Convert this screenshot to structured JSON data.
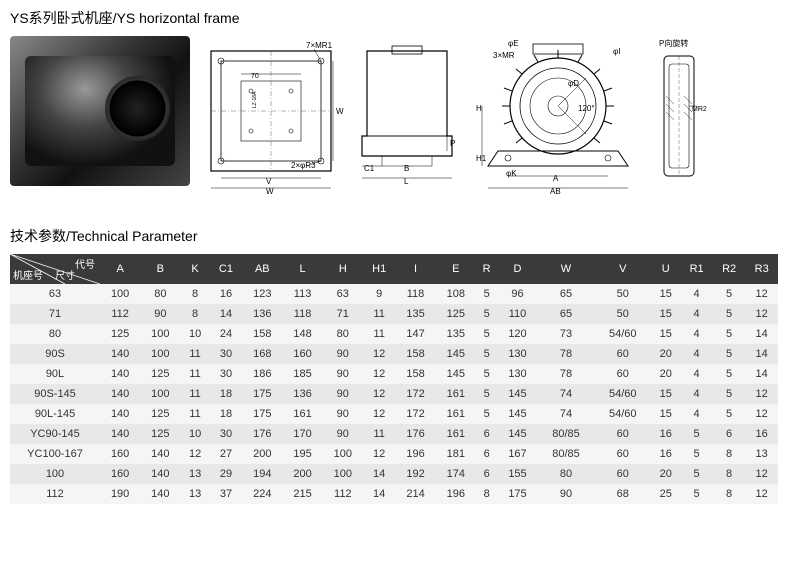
{
  "title": "YS系列卧式机座/YS horizontal frame",
  "section_title": "技术参数/Technical Parameter",
  "diagram_labels": {
    "view2": {
      "mr1": "7×MR1",
      "r3": "2×φR3",
      "v_top": "V",
      "w_side": "W",
      "v_bottom": "V",
      "w_bottom": "W",
      "dim70": "70",
      "inner": "LZ-18A"
    },
    "view3": {
      "p": "P",
      "b": "B",
      "c1": "C1",
      "l": "L"
    },
    "view4": {
      "e": "φE",
      "mr": "3×MR",
      "i": "φI",
      "d": "φD",
      "angle": "120°",
      "h": "H",
      "h1": "H1",
      "k": "φK",
      "a": "A",
      "ab": "AB"
    },
    "view5": {
      "rot": "P向旋转",
      "mr2": "MR2"
    }
  },
  "table": {
    "corner": {
      "top": "代号",
      "mid": "尺寸",
      "bottom": "机座号"
    },
    "headers": [
      "A",
      "B",
      "K",
      "C1",
      "AB",
      "L",
      "H",
      "H1",
      "I",
      "E",
      "R",
      "D",
      "W",
      "V",
      "U",
      "R1",
      "R2",
      "R3"
    ],
    "rows": [
      {
        "name": "63",
        "cells": [
          "100",
          "80",
          "8",
          "16",
          "123",
          "113",
          "63",
          "9",
          "118",
          "108",
          "5",
          "96",
          "65",
          "50",
          "15",
          "4",
          "5",
          "12"
        ]
      },
      {
        "name": "71",
        "cells": [
          "112",
          "90",
          "8",
          "14",
          "136",
          "118",
          "71",
          "11",
          "135",
          "125",
          "5",
          "110",
          "65",
          "50",
          "15",
          "4",
          "5",
          "12"
        ]
      },
      {
        "name": "80",
        "cells": [
          "125",
          "100",
          "10",
          "24",
          "158",
          "148",
          "80",
          "11",
          "147",
          "135",
          "5",
          "120",
          "73",
          "54/60",
          "15",
          "4",
          "5",
          "14"
        ]
      },
      {
        "name": "90S",
        "cells": [
          "140",
          "100",
          "11",
          "30",
          "168",
          "160",
          "90",
          "12",
          "158",
          "145",
          "5",
          "130",
          "78",
          "60",
          "20",
          "4",
          "5",
          "14"
        ]
      },
      {
        "name": "90L",
        "cells": [
          "140",
          "125",
          "11",
          "30",
          "186",
          "185",
          "90",
          "12",
          "158",
          "145",
          "5",
          "130",
          "78",
          "60",
          "20",
          "4",
          "5",
          "14"
        ]
      },
      {
        "name": "90S-145",
        "cells": [
          "140",
          "100",
          "11",
          "18",
          "175",
          "136",
          "90",
          "12",
          "172",
          "161",
          "5",
          "145",
          "74",
          "54/60",
          "15",
          "4",
          "5",
          "12"
        ]
      },
      {
        "name": "90L-145",
        "cells": [
          "140",
          "125",
          "11",
          "18",
          "175",
          "161",
          "90",
          "12",
          "172",
          "161",
          "5",
          "145",
          "74",
          "54/60",
          "15",
          "4",
          "5",
          "12"
        ]
      },
      {
        "name": "YC90-145",
        "cells": [
          "140",
          "125",
          "10",
          "30",
          "176",
          "170",
          "90",
          "11",
          "176",
          "161",
          "6",
          "145",
          "80/85",
          "60",
          "16",
          "5",
          "6",
          "16"
        ]
      },
      {
        "name": "YC100-167",
        "cells": [
          "160",
          "140",
          "12",
          "27",
          "200",
          "195",
          "100",
          "12",
          "196",
          "181",
          "6",
          "167",
          "80/85",
          "60",
          "16",
          "5",
          "8",
          "13"
        ]
      },
      {
        "name": "100",
        "cells": [
          "160",
          "140",
          "13",
          "29",
          "194",
          "200",
          "100",
          "14",
          "192",
          "174",
          "6",
          "155",
          "80",
          "60",
          "20",
          "5",
          "8",
          "12"
        ]
      },
      {
        "name": "112",
        "cells": [
          "190",
          "140",
          "13",
          "37",
          "224",
          "215",
          "112",
          "14",
          "214",
          "196",
          "8",
          "175",
          "90",
          "68",
          "25",
          "5",
          "8",
          "12"
        ]
      }
    ]
  },
  "style": {
    "header_bg": "#3a3a3a",
    "header_fg": "#ffffff",
    "row_odd_bg": "#f5f5f5",
    "row_even_bg": "#e8e8e8",
    "text_color": "#333333",
    "font_size_body": 11,
    "font_size_title": 14
  }
}
